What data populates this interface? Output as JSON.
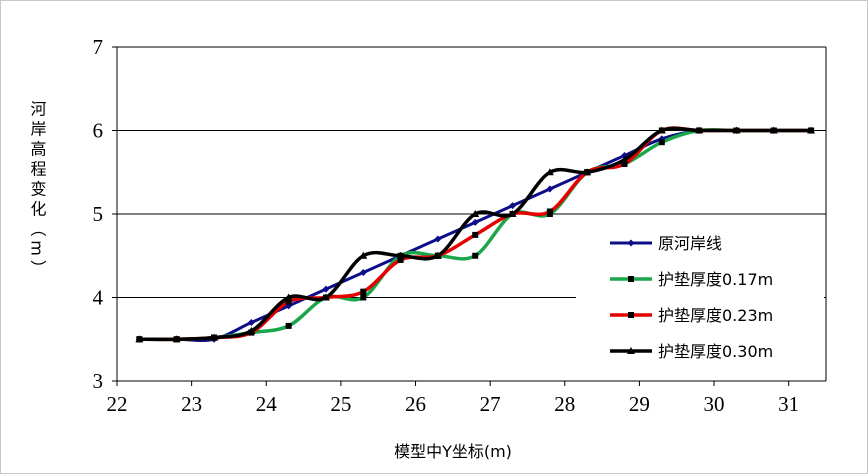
{
  "chart_data": {
    "type": "line",
    "title": "",
    "xlabel": "模型中Y坐标(m)",
    "ylabel": "河岸高程变化（m）",
    "xlim": [
      22,
      31.5
    ],
    "ylim": [
      3,
      7
    ],
    "xticks": [
      "22",
      "23",
      "24",
      "25",
      "26",
      "27",
      "28",
      "29",
      "30",
      "31"
    ],
    "yticks": [
      "3",
      "4",
      "5",
      "6",
      "7"
    ],
    "grid": "horizontal",
    "legend_position": "right",
    "series": [
      {
        "name": "原河岸线",
        "color": "#0d0d8a",
        "marker": "diamond",
        "x": [
          22.3,
          22.8,
          23.3,
          23.8,
          24.3,
          24.8,
          25.3,
          25.8,
          26.3,
          26.8,
          27.3,
          27.8,
          28.3,
          28.8,
          29.3,
          29.8,
          30.3,
          30.8,
          31.3
        ],
        "y": [
          3.5,
          3.5,
          3.5,
          3.7,
          3.9,
          4.1,
          4.3,
          4.5,
          4.7,
          4.9,
          5.1,
          5.3,
          5.5,
          5.7,
          5.9,
          6.0,
          6.0,
          6.0,
          6.0
        ]
      },
      {
        "name": "护垫厚度0.17m",
        "color": "#1aa64a",
        "marker": "square",
        "x": [
          22.3,
          22.8,
          23.3,
          23.8,
          24.3,
          24.8,
          25.3,
          25.8,
          26.3,
          26.8,
          27.3,
          27.8,
          28.3,
          28.8,
          29.3,
          29.8,
          30.3,
          30.8,
          31.3
        ],
        "y": [
          3.5,
          3.5,
          3.52,
          3.58,
          3.66,
          4.0,
          4.0,
          4.5,
          4.5,
          4.5,
          5.0,
          5.0,
          5.5,
          5.6,
          5.86,
          6.0,
          6.0,
          6.0,
          6.0
        ]
      },
      {
        "name": "护垫厚度0.23m",
        "color": "#e60000",
        "marker": "square",
        "x": [
          22.3,
          22.8,
          23.3,
          23.8,
          24.3,
          24.8,
          25.3,
          25.8,
          26.3,
          26.8,
          27.3,
          27.8,
          28.3,
          28.8,
          29.3,
          29.8,
          30.3,
          30.8,
          31.3
        ],
        "y": [
          3.5,
          3.5,
          3.52,
          3.58,
          3.95,
          4.0,
          4.07,
          4.45,
          4.5,
          4.75,
          5.0,
          5.03,
          5.5,
          5.6,
          6.0,
          6.0,
          6.0,
          6.0,
          6.0
        ]
      },
      {
        "name": "护垫厚度0.30m",
        "color": "#000000",
        "marker": "triangle",
        "x": [
          22.3,
          22.8,
          23.3,
          23.8,
          24.3,
          24.8,
          25.3,
          25.8,
          26.3,
          26.8,
          27.3,
          27.8,
          28.3,
          28.8,
          29.3,
          29.8,
          30.3,
          30.8,
          31.3
        ],
        "y": [
          3.5,
          3.5,
          3.52,
          3.6,
          4.0,
          4.0,
          4.5,
          4.5,
          4.5,
          5.0,
          5.0,
          5.5,
          5.5,
          5.65,
          6.0,
          6.0,
          6.0,
          6.0,
          6.0
        ]
      }
    ]
  }
}
